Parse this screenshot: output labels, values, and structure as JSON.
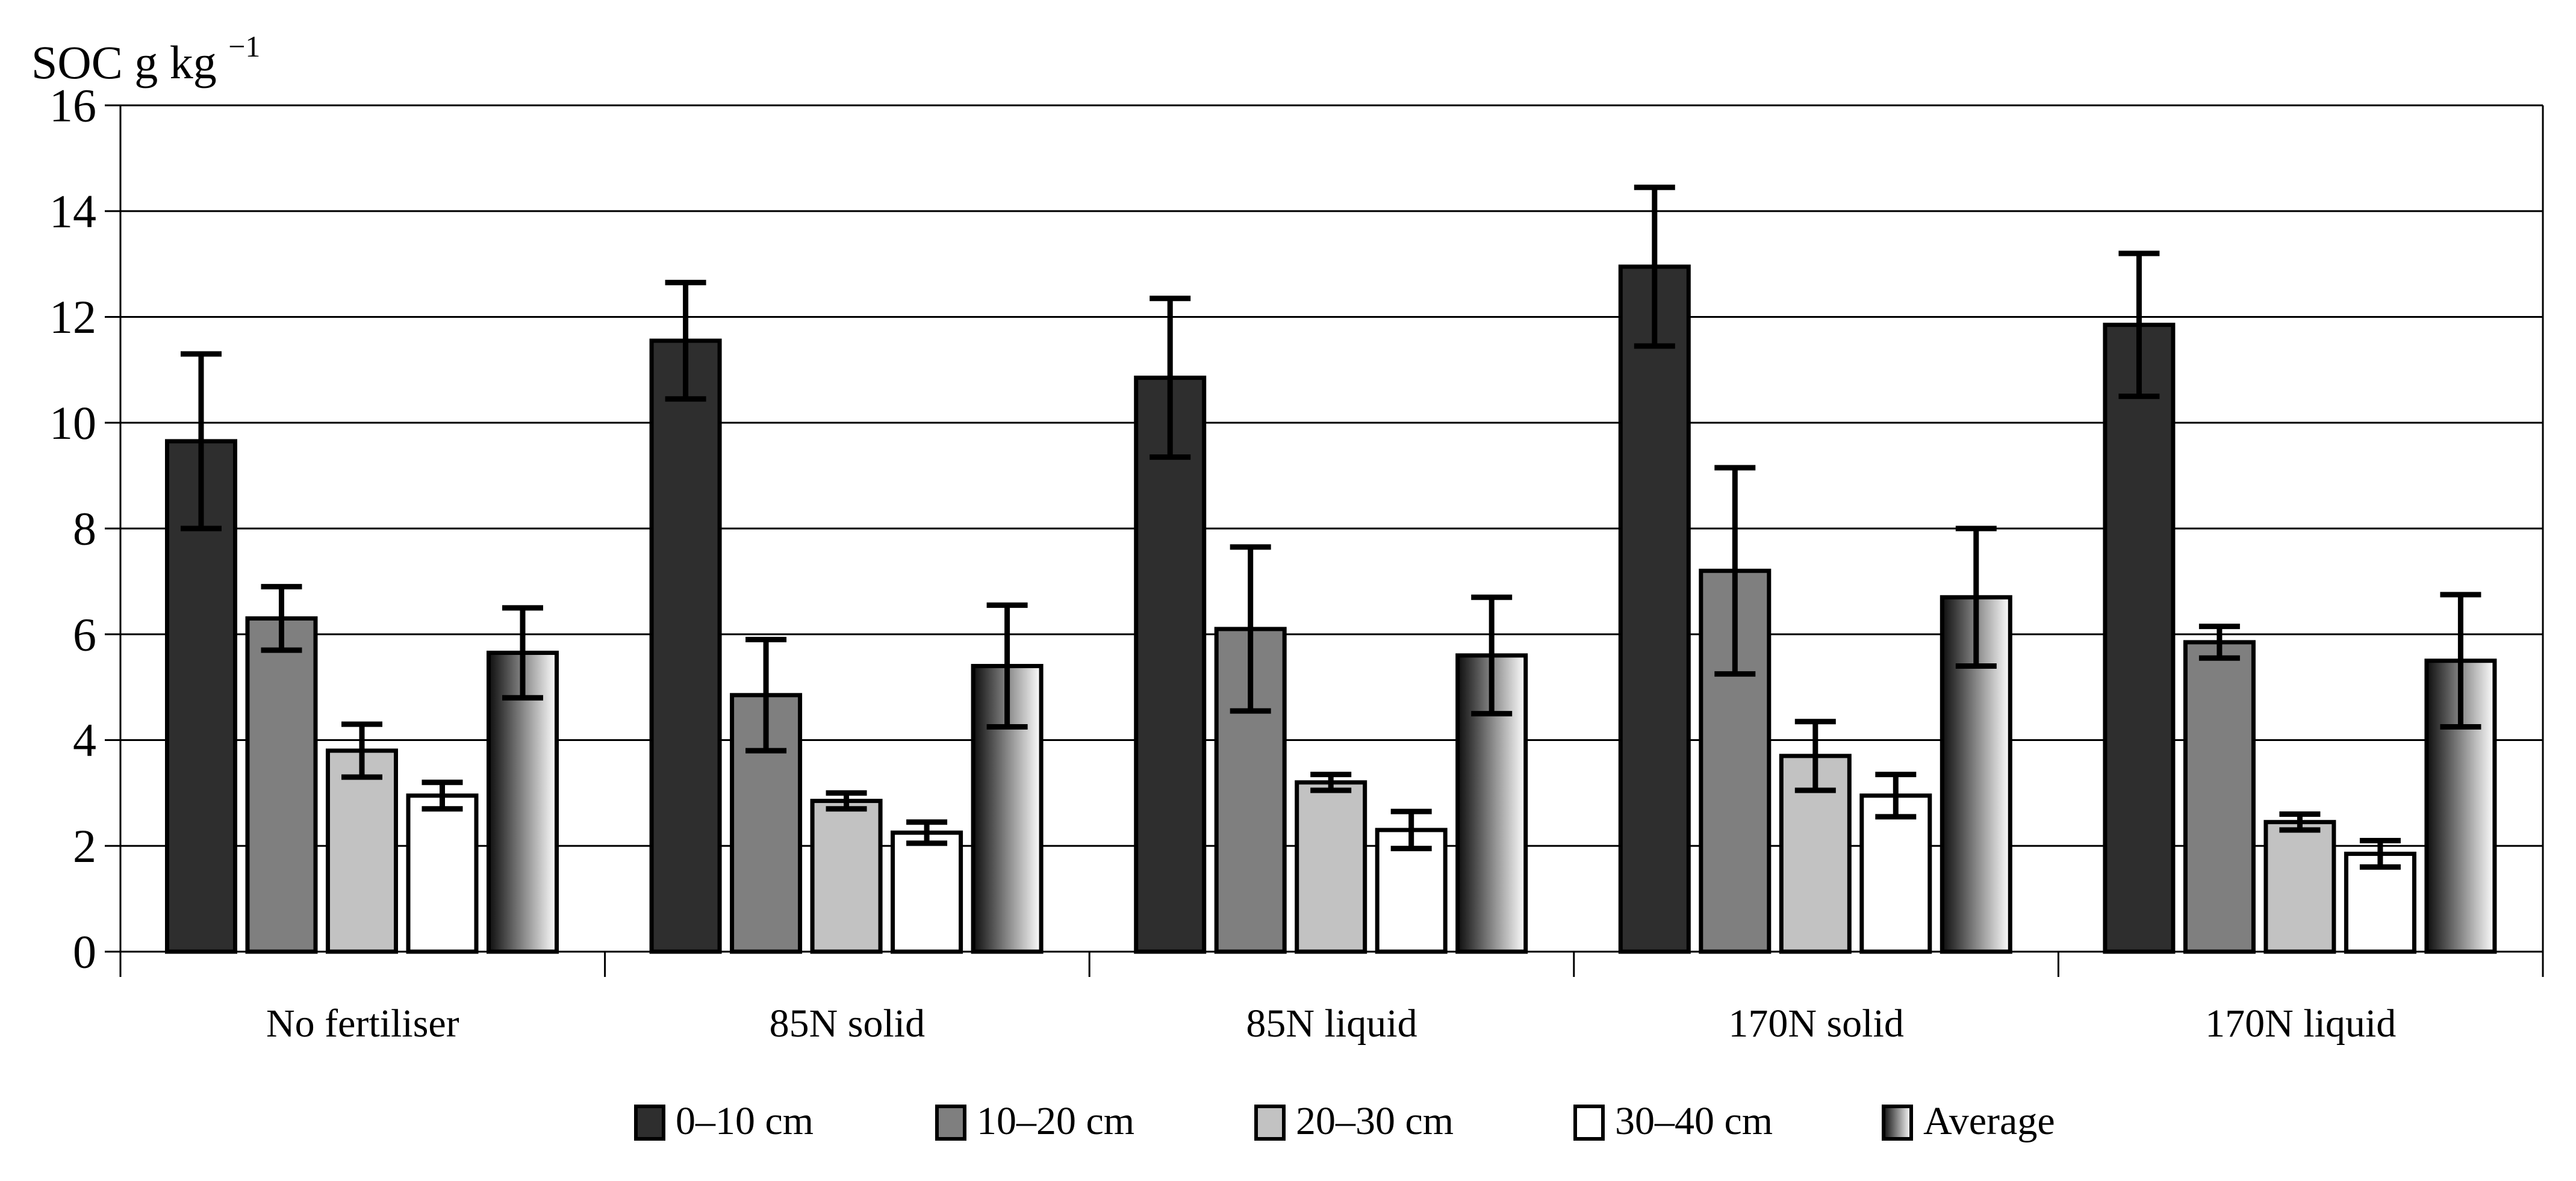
{
  "chart_data": {
    "type": "bar",
    "title": {
      "base": "SOC g kg",
      "superscript": "−1"
    },
    "categories": [
      "No fertiliser",
      "85N solid",
      "85N liquid",
      "170N solid",
      "170N liquid"
    ],
    "series": [
      {
        "name": "0–10 cm",
        "fill": "#2e2e2e",
        "values": [
          9.65,
          11.55,
          10.85,
          12.95,
          11.85
        ],
        "errors": [
          1.65,
          1.1,
          1.5,
          1.5,
          1.35
        ]
      },
      {
        "name": "10–20 cm",
        "fill": "#7f7f7f",
        "values": [
          6.3,
          4.85,
          6.1,
          7.2,
          5.85
        ],
        "errors": [
          0.6,
          1.05,
          1.55,
          1.95,
          0.3
        ]
      },
      {
        "name": "20–30 cm",
        "fill": "#c2c2c2",
        "values": [
          3.8,
          2.85,
          3.2,
          3.7,
          2.45
        ],
        "errors": [
          0.5,
          0.15,
          0.15,
          0.65,
          0.15
        ]
      },
      {
        "name": "30–40 cm",
        "fill": "#ffffff",
        "values": [
          2.95,
          2.25,
          2.3,
          2.95,
          1.85
        ],
        "errors": [
          0.25,
          0.2,
          0.35,
          0.4,
          0.25
        ]
      },
      {
        "name": "Average",
        "fill": "gradient",
        "values": [
          5.65,
          5.4,
          5.6,
          6.7,
          5.5
        ],
        "errors": [
          0.85,
          1.15,
          1.1,
          1.3,
          1.25
        ]
      }
    ],
    "ylim": [
      0,
      16
    ],
    "yticks": [
      0,
      2,
      4,
      6,
      8,
      10,
      12,
      14,
      16
    ],
    "grid": true,
    "legend_position": "bottom",
    "colors": {
      "bar_border": "#000000",
      "gridline": "#000000",
      "error_bar": "#000000",
      "gradient_from": "#0d0d0d",
      "gradient_to": "#ffffff",
      "background": "#ffffff"
    }
  }
}
